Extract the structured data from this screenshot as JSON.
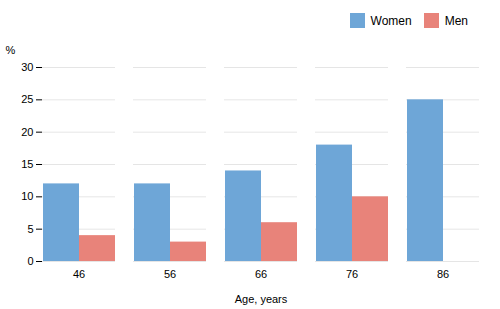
{
  "chart_data": {
    "type": "bar",
    "categories": [
      "46",
      "56",
      "66",
      "76",
      "86"
    ],
    "series": [
      {
        "name": "Women",
        "color": "#6EA6D7",
        "values": [
          12,
          12,
          14,
          18,
          25
        ]
      },
      {
        "name": "Men",
        "color": "#E8837A",
        "values": [
          4,
          3,
          6,
          10,
          0
        ]
      }
    ],
    "xlabel": "Age, years",
    "ylabel": "%",
    "ylim": [
      0,
      30
    ],
    "yticks": [
      0,
      5,
      10,
      15,
      20,
      25,
      30
    ],
    "grid": true,
    "legend": "upper right"
  }
}
